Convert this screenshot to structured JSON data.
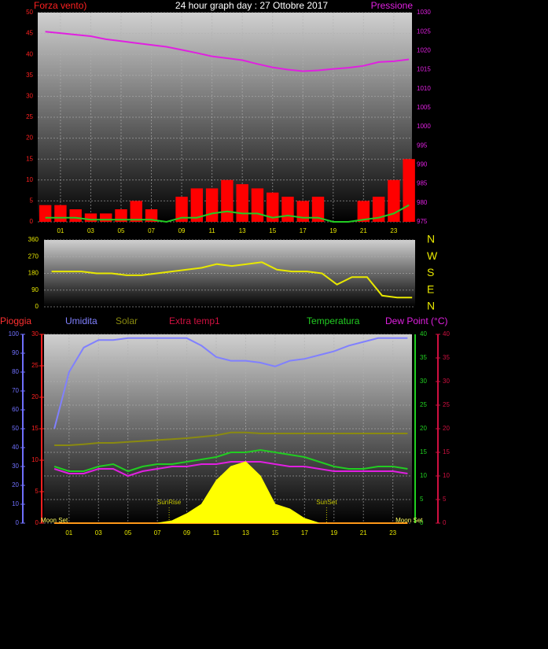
{
  "chart_data": [
    {
      "type": "line",
      "title": "24 hour graph day : 27 Ottobre 2017",
      "ylabel": "Forza vento)",
      "y2label": "Pressione",
      "x": [
        0,
        1,
        2,
        3,
        4,
        5,
        6,
        7,
        8,
        9,
        10,
        11,
        12,
        13,
        14,
        15,
        16,
        17,
        18,
        19,
        20,
        21,
        22,
        23,
        24
      ],
      "xlim": [
        -0.5,
        24.2
      ],
      "xticks": [
        {
          "value": 1,
          "label": "01"
        },
        {
          "value": 3,
          "label": "03"
        },
        {
          "value": 5,
          "label": "05"
        },
        {
          "value": 7,
          "label": "07"
        },
        {
          "value": 9,
          "label": "09"
        },
        {
          "value": 11,
          "label": "11"
        },
        {
          "value": 13,
          "label": "13"
        },
        {
          "value": 15,
          "label": "15"
        },
        {
          "value": 17,
          "label": "17"
        },
        {
          "value": 19,
          "label": "19"
        },
        {
          "value": 21,
          "label": "21"
        },
        {
          "value": 23,
          "label": "23"
        }
      ],
      "ylim": [
        0,
        50
      ],
      "yticks": [
        0,
        5,
        10,
        15,
        20,
        25,
        30,
        35,
        40,
        45,
        50
      ],
      "y2lim": [
        975,
        1030
      ],
      "y2ticks": [
        975,
        980,
        985,
        990,
        995,
        1000,
        1005,
        1010,
        1015,
        1020,
        1025,
        1030
      ],
      "grid": true,
      "series": [
        {
          "color": "#ff0000",
          "style": "bar",
          "values": [
            4,
            4,
            3,
            2,
            2,
            3,
            5,
            3,
            0,
            6,
            8,
            8,
            10,
            9,
            8,
            7,
            6,
            5,
            6,
            0,
            0,
            5,
            6,
            10,
            15
          ]
        },
        {
          "color": "#22cc22",
          "values": [
            1,
            1,
            1,
            0.5,
            0.5,
            0.5,
            0.5,
            0.5,
            0,
            1,
            1,
            2,
            2.5,
            2,
            2,
            1,
            1.5,
            1,
            1,
            0,
            0,
            0.5,
            1,
            2,
            4
          ]
        },
        {
          "color": "#e020e0",
          "axis": "y2",
          "values": [
            1025,
            1024.6,
            1024.2,
            1023.8,
            1023,
            1022.5,
            1022,
            1021.5,
            1021,
            1020.2,
            1019.4,
            1018.5,
            1018,
            1017.5,
            1016.5,
            1015.6,
            1015,
            1014.6,
            1014.8,
            1015.2,
            1015.5,
            1016,
            1017,
            1017.2,
            1017.7
          ]
        }
      ]
    },
    {
      "type": "line",
      "x": [
        0,
        1,
        2,
        3,
        4,
        5,
        6,
        7,
        8,
        9,
        10,
        11,
        12,
        13,
        14,
        15,
        16,
        17,
        18,
        19,
        20,
        21,
        22,
        23,
        24
      ],
      "xlim": [
        -0.5,
        24.2
      ],
      "ylim": [
        0,
        360
      ],
      "yticks": [
        0,
        90,
        180,
        270,
        360
      ],
      "y2lim": [
        0,
        360
      ],
      "y2ticks": [
        {
          "value": 360,
          "label": "N"
        },
        {
          "value": 270,
          "label": "W"
        },
        {
          "value": 180,
          "label": "S"
        },
        {
          "value": 90,
          "label": "E"
        },
        {
          "value": 0,
          "label": "N"
        }
      ],
      "grid": true,
      "series": [
        {
          "color": "#e8e800",
          "values": [
            190,
            190,
            190,
            180,
            180,
            170,
            170,
            180,
            190,
            200,
            210,
            230,
            220,
            230,
            240,
            200,
            190,
            190,
            180,
            120,
            160,
            160,
            60,
            50,
            50
          ]
        }
      ]
    },
    {
      "type": "line",
      "x": [
        0,
        1,
        2,
        3,
        4,
        5,
        6,
        7,
        8,
        9,
        10,
        11,
        12,
        13,
        14,
        15,
        16,
        17,
        18,
        19,
        20,
        21,
        22,
        23,
        24
      ],
      "xlim": [
        -0.7,
        24.3
      ],
      "xticks": [
        {
          "value": 1,
          "label": "01"
        },
        {
          "value": 3,
          "label": "03"
        },
        {
          "value": 5,
          "label": "05"
        },
        {
          "value": 7,
          "label": "07"
        },
        {
          "value": 9,
          "label": "09"
        },
        {
          "value": 11,
          "label": "11"
        },
        {
          "value": 13,
          "label": "13"
        },
        {
          "value": 15,
          "label": "15"
        },
        {
          "value": 17,
          "label": "17"
        },
        {
          "value": 19,
          "label": "19"
        },
        {
          "value": 21,
          "label": "21"
        },
        {
          "value": 23,
          "label": "23"
        }
      ],
      "ylim": [
        0,
        30
      ],
      "yticks": [
        0,
        5,
        10,
        15,
        20,
        25,
        30
      ],
      "y2lim": [
        0,
        40
      ],
      "y2ticks": [
        0,
        5,
        10,
        15,
        20,
        25,
        30,
        35,
        40
      ],
      "y3lim": [
        0,
        100
      ],
      "y3ticks": [
        0,
        10,
        20,
        30,
        40,
        50,
        60,
        70,
        80,
        90,
        100
      ],
      "y4lim": [
        0,
        40
      ],
      "y4ticks": [
        0,
        5,
        10,
        15,
        20,
        25,
        30,
        35,
        40
      ],
      "grid": true,
      "series": [
        {
          "name": "Pioggia",
          "color": "#ff3030",
          "axis": "y",
          "values": [
            0,
            0,
            0,
            0,
            0,
            0,
            0,
            0,
            0,
            0,
            0,
            0,
            0,
            0,
            0,
            0,
            0,
            0,
            0,
            0,
            0,
            0,
            0,
            0,
            0
          ]
        },
        {
          "name": "Umidita",
          "color": "#8080ff",
          "axis": "y3",
          "values": [
            50,
            80,
            93,
            97,
            97,
            98,
            98,
            98,
            98,
            98,
            94,
            88,
            86,
            86,
            85,
            83,
            86,
            87,
            89,
            91,
            94,
            96,
            98,
            98,
            98
          ]
        },
        {
          "name": "Solar",
          "color": "#8a8a10",
          "axis": "y2",
          "values": [
            16.5,
            16.5,
            16.7,
            17,
            17,
            17.2,
            17.4,
            17.6,
            17.8,
            18,
            18.3,
            18.6,
            19.2,
            19.2,
            19,
            19,
            19,
            19,
            19,
            19,
            19,
            19,
            19,
            19,
            19
          ]
        },
        {
          "name": "Extra temp1",
          "color": "#d01040",
          "axis": "y4",
          "values": [
            null,
            null,
            null,
            null,
            null,
            null,
            null,
            null,
            null,
            null,
            null,
            null,
            null,
            null,
            null,
            null,
            null,
            null,
            null,
            null,
            null,
            null,
            null,
            null,
            null
          ]
        },
        {
          "name": "Temperatura",
          "color": "#22cc22",
          "axis": "y2",
          "values": [
            12,
            11,
            11,
            12,
            12.5,
            11,
            12,
            12.5,
            12.5,
            13,
            13.5,
            14,
            15,
            15,
            15.5,
            15,
            14.5,
            14,
            13,
            12,
            11.5,
            11.5,
            12,
            12,
            11.5
          ]
        },
        {
          "name": "Dew Point (°C)",
          "color": "#e020e0",
          "axis": "y4",
          "values": [
            11.5,
            10.5,
            10.5,
            11.5,
            11.5,
            10,
            11,
            11.5,
            12,
            12,
            12.5,
            12.5,
            13,
            13,
            13,
            12.5,
            12,
            12,
            11.5,
            11,
            11,
            11,
            11,
            11,
            10.5
          ]
        },
        {
          "color": "#ffff00",
          "style": "area",
          "axis": "y2",
          "values": [
            0,
            0,
            0,
            0,
            0,
            0,
            0,
            0,
            0.5,
            2,
            4,
            9,
            12,
            13,
            10,
            4,
            3,
            1,
            0,
            0,
            0,
            0,
            0,
            0,
            0
          ]
        }
      ],
      "annotations": [
        {
          "text": "SunRise",
          "x": 7.8
        },
        {
          "text": "SunSet",
          "x": 18.5
        },
        {
          "text": "Moon Set",
          "x": 0
        },
        {
          "text": "Moon Set",
          "x": 24.1
        }
      ]
    }
  ]
}
